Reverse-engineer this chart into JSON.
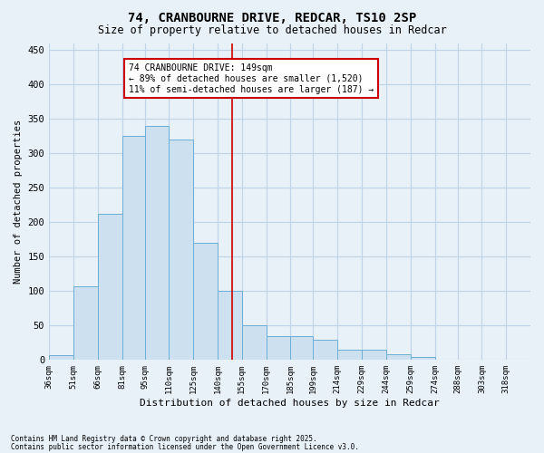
{
  "title": "74, CRANBOURNE DRIVE, REDCAR, TS10 2SP",
  "subtitle": "Size of property relative to detached houses in Redcar",
  "xlabel": "Distribution of detached houses by size in Redcar",
  "ylabel": "Number of detached properties",
  "footnote1": "Contains HM Land Registry data © Crown copyright and database right 2025.",
  "footnote2": "Contains public sector information licensed under the Open Government Licence v3.0.",
  "annotation_line1": "74 CRANBOURNE DRIVE: 149sqm",
  "annotation_line2": "← 89% of detached houses are smaller (1,520)",
  "annotation_line3": "11% of semi-detached houses are larger (187) →",
  "bar_edges": [
    36,
    51,
    66,
    81,
    95,
    110,
    125,
    140,
    155,
    170,
    185,
    199,
    214,
    229,
    244,
    259,
    274,
    288,
    303,
    318,
    333
  ],
  "bar_heights": [
    7,
    107,
    212,
    325,
    340,
    320,
    170,
    100,
    50,
    35,
    35,
    30,
    15,
    15,
    8,
    5,
    1,
    1,
    1,
    1
  ],
  "bar_color": "#cce0f0",
  "bar_edge_color": "#6baed6",
  "vline_color": "#cc0000",
  "vline_x": 149,
  "grid_color": "#c0d4e8",
  "bg_color": "#e8f0f8",
  "annotation_box_color": "#cc0000",
  "ylim": [
    0,
    460
  ],
  "yticks": [
    0,
    50,
    100,
    150,
    200,
    250,
    300,
    350,
    400,
    450
  ],
  "xlim_left": 36,
  "xlim_right": 333
}
